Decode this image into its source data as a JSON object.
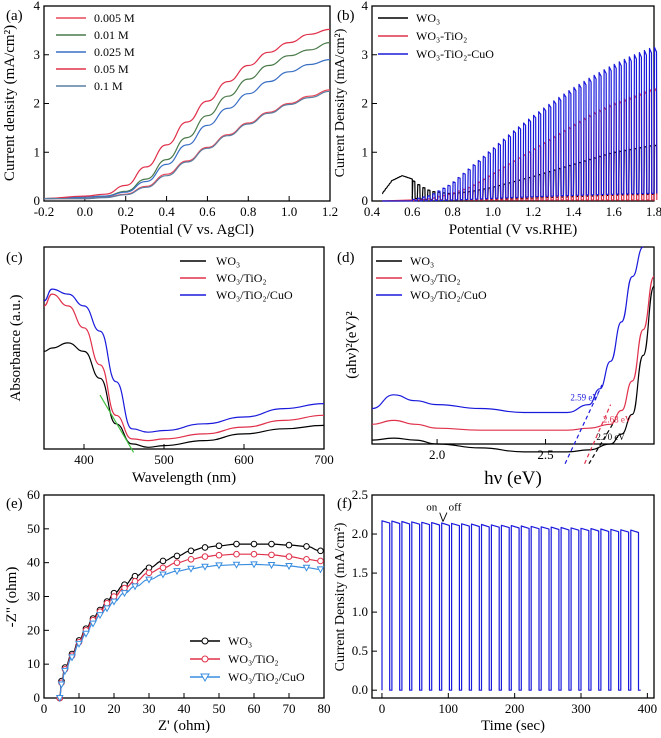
{
  "chart_data": [
    {
      "id": "a",
      "panel_label": "(a)",
      "type": "line",
      "xlabel": "Potential (V vs. AgCl)",
      "ylabel": "Current density (mA/cm²)",
      "xlim": [
        -0.2,
        1.2
      ],
      "ylim": [
        0,
        4
      ],
      "xticks": [
        -0.2,
        0.0,
        0.2,
        0.4,
        0.6,
        0.8,
        1.0,
        1.2
      ],
      "xtick_labels": [
        "-0.2",
        "0.0",
        "0.2",
        "0.4",
        "0.6",
        "0.8",
        "1.0",
        "1.2"
      ],
      "yticks": [
        0,
        1,
        2,
        3,
        4
      ],
      "ytick_labels": [
        "0",
        "1",
        "2",
        "3",
        "4"
      ],
      "legend_position": "top-left",
      "series": [
        {
          "name": "0.005 M",
          "color": "#e8485a",
          "x": [
            -0.2,
            0.0,
            0.1,
            0.2,
            0.3,
            0.4,
            0.5,
            0.6,
            0.7,
            0.8,
            0.9,
            1.0,
            1.1,
            1.2
          ],
          "values": [
            0.05,
            0.05,
            0.08,
            0.14,
            0.3,
            0.55,
            0.82,
            1.1,
            1.36,
            1.6,
            1.82,
            2.0,
            2.15,
            2.28
          ]
        },
        {
          "name": "0.01 M",
          "color": "#4a7a4a",
          "x": [
            -0.2,
            0.0,
            0.1,
            0.2,
            0.3,
            0.4,
            0.5,
            0.6,
            0.7,
            0.8,
            0.9,
            1.0,
            1.1,
            1.2
          ],
          "values": [
            0.05,
            0.08,
            0.1,
            0.2,
            0.45,
            0.85,
            1.3,
            1.75,
            2.15,
            2.5,
            2.78,
            2.98,
            3.1,
            3.25
          ]
        },
        {
          "name": "0.025 M",
          "color": "#3a6fc4",
          "x": [
            -0.2,
            0.0,
            0.1,
            0.2,
            0.3,
            0.4,
            0.5,
            0.6,
            0.7,
            0.8,
            0.9,
            1.0,
            1.1,
            1.2
          ],
          "values": [
            0.05,
            0.08,
            0.1,
            0.18,
            0.4,
            0.75,
            1.15,
            1.55,
            1.9,
            2.2,
            2.45,
            2.65,
            2.8,
            2.9
          ]
        },
        {
          "name": "0.05 M",
          "color": "#e0304a",
          "x": [
            -0.2,
            0.0,
            0.1,
            0.2,
            0.3,
            0.4,
            0.5,
            0.6,
            0.7,
            0.8,
            0.9,
            1.0,
            1.1,
            1.2
          ],
          "values": [
            0.05,
            0.1,
            0.14,
            0.32,
            0.7,
            1.15,
            1.62,
            2.05,
            2.45,
            2.78,
            3.05,
            3.25,
            3.42,
            3.52
          ]
        },
        {
          "name": "0.1 M",
          "color": "#5a7fa0",
          "x": [
            -0.2,
            0.0,
            0.1,
            0.2,
            0.3,
            0.4,
            0.5,
            0.6,
            0.7,
            0.8,
            0.9,
            1.0,
            1.1,
            1.2
          ],
          "values": [
            0.05,
            0.05,
            0.07,
            0.13,
            0.28,
            0.52,
            0.8,
            1.08,
            1.34,
            1.58,
            1.8,
            1.98,
            2.12,
            2.25
          ]
        }
      ]
    },
    {
      "id": "b",
      "panel_label": "(b)",
      "type": "line",
      "xlabel": "Potential (V vs.RHE)",
      "ylabel": "Current Density (mA/cm²)",
      "xlim": [
        0.4,
        1.8
      ],
      "ylim": [
        0,
        4
      ],
      "xticks": [
        0.4,
        0.6,
        0.8,
        1.0,
        1.2,
        1.4,
        1.6,
        1.8
      ],
      "xtick_labels": [
        "0.4",
        "0.6",
        "0.8",
        "1.0",
        "1.2",
        "1.4",
        "1.6",
        "1.8"
      ],
      "yticks": [
        0,
        1,
        2,
        3,
        4
      ],
      "ytick_labels": [
        "0",
        "1",
        "2",
        "3",
        "4"
      ],
      "legend_position": "top-left",
      "chopped": {
        "period": 0.025,
        "start": 0.6
      },
      "series": [
        {
          "name": "WO₃",
          "color": "#000000",
          "x": [
            0.45,
            0.5,
            0.55,
            0.6,
            0.65,
            0.7,
            0.8,
            0.9,
            1.0,
            1.2,
            1.4,
            1.6,
            1.8
          ],
          "values": [
            0.15,
            0.42,
            0.52,
            0.45,
            0.3,
            0.2,
            0.15,
            0.2,
            0.28,
            0.5,
            0.75,
            1.0,
            1.15
          ]
        },
        {
          "name": "WO₃-TiO₂",
          "color": "#e0304a",
          "x": [
            0.45,
            0.6,
            0.7,
            0.8,
            0.9,
            1.0,
            1.1,
            1.2,
            1.3,
            1.4,
            1.5,
            1.6,
            1.7,
            1.8
          ],
          "values": [
            0.0,
            0.0,
            0.05,
            0.15,
            0.3,
            0.55,
            0.8,
            1.05,
            1.3,
            1.55,
            1.8,
            2.0,
            2.15,
            2.32
          ]
        },
        {
          "name": "WO₃-TiO₂-CuO",
          "color": "#1a1adc",
          "x": [
            0.45,
            0.6,
            0.7,
            0.8,
            0.9,
            1.0,
            1.1,
            1.2,
            1.3,
            1.4,
            1.5,
            1.6,
            1.7,
            1.8
          ],
          "values": [
            0.0,
            0.02,
            0.12,
            0.35,
            0.7,
            1.05,
            1.4,
            1.72,
            2.02,
            2.3,
            2.55,
            2.78,
            2.98,
            3.15
          ]
        }
      ]
    },
    {
      "id": "c",
      "panel_label": "(c)",
      "type": "line",
      "xlabel": "Wavelength (nm)",
      "ylabel": "Absorbance (a.u.)",
      "xlim": [
        350,
        700
      ],
      "ylim": [
        0,
        1.2
      ],
      "xticks": [
        400,
        500,
        600,
        700
      ],
      "xtick_labels": [
        "400",
        "500",
        "600",
        "700"
      ],
      "legend_position": "top-right",
      "series": [
        {
          "name": "WO₃",
          "color": "#000000",
          "x": [
            350,
            360,
            380,
            400,
            420,
            440,
            460,
            480,
            500,
            550,
            600,
            650,
            700
          ],
          "values": [
            0.58,
            0.6,
            0.63,
            0.58,
            0.42,
            0.15,
            0.03,
            0.01,
            0.02,
            0.05,
            0.09,
            0.12,
            0.14
          ]
        },
        {
          "name": "WO₃/TiO₂",
          "color": "#e0304a",
          "x": [
            350,
            360,
            380,
            400,
            420,
            440,
            460,
            480,
            500,
            550,
            600,
            650,
            700
          ],
          "values": [
            0.85,
            0.92,
            0.85,
            0.72,
            0.5,
            0.2,
            0.06,
            0.05,
            0.06,
            0.09,
            0.13,
            0.17,
            0.2
          ]
        },
        {
          "name": "WO₃/TiO₂/CuO",
          "color": "#1a1adc",
          "x": [
            350,
            360,
            380,
            400,
            420,
            440,
            460,
            480,
            500,
            550,
            600,
            650,
            700
          ],
          "values": [
            0.88,
            0.95,
            0.92,
            0.85,
            0.7,
            0.4,
            0.12,
            0.1,
            0.11,
            0.15,
            0.19,
            0.24,
            0.27
          ]
        },
        {
          "name": "tangent",
          "color": "#40c040",
          "x": [
            420,
            462
          ],
          "values": [
            0.32,
            -0.02
          ],
          "legend": false
        }
      ]
    },
    {
      "id": "d",
      "panel_label": "(d)",
      "type": "line",
      "xlabel": "hν (eV)",
      "ylabel": "(ahν)²(eV)²",
      "xlim": [
        1.7,
        3.0
      ],
      "ylim": [
        0,
        1.0
      ],
      "xticks": [
        2.0,
        2.5
      ],
      "xtick_labels": [
        "2.0",
        "2.5"
      ],
      "legend_position": "top-left",
      "annotations": [
        {
          "text": "2.59 eV",
          "x": 2.68,
          "y": 0.22,
          "color": "#1a1adc"
        },
        {
          "text": "2.68 eV",
          "x": 2.83,
          "y": 0.11,
          "color": "#e0304a"
        },
        {
          "text": "2.70 eV",
          "x": 2.8,
          "y": 0.02,
          "color": "#000000"
        }
      ],
      "series": [
        {
          "name": "WO₃",
          "color": "#000000",
          "x": [
            1.7,
            1.8,
            1.9,
            2.0,
            2.2,
            2.4,
            2.6,
            2.7,
            2.8,
            2.85,
            2.9,
            2.95,
            3.0
          ],
          "values": [
            0.02,
            0.03,
            0.02,
            0.0,
            -0.02,
            -0.04,
            -0.04,
            -0.03,
            0.0,
            0.05,
            0.15,
            0.45,
            0.8
          ]
        },
        {
          "name": "WO₃/TiO₂",
          "color": "#e0304a",
          "x": [
            1.7,
            1.8,
            1.9,
            2.0,
            2.2,
            2.4,
            2.6,
            2.7,
            2.8,
            2.85,
            2.9,
            2.95,
            3.0
          ],
          "values": [
            0.1,
            0.12,
            0.1,
            0.08,
            0.07,
            0.07,
            0.07,
            0.08,
            0.1,
            0.17,
            0.32,
            0.58,
            0.85
          ]
        },
        {
          "name": "WO₃/TiO₂/CuO",
          "color": "#1a1adc",
          "x": [
            1.7,
            1.8,
            1.9,
            2.0,
            2.2,
            2.4,
            2.6,
            2.7,
            2.75,
            2.8,
            2.85,
            2.9,
            2.95
          ],
          "values": [
            0.18,
            0.25,
            0.22,
            0.2,
            0.18,
            0.16,
            0.16,
            0.2,
            0.28,
            0.42,
            0.62,
            0.85,
            1.0
          ]
        }
      ]
    },
    {
      "id": "e",
      "panel_label": "(e)",
      "type": "scatter",
      "xlabel": "Z' (ohm)",
      "ylabel": "-Z\" (ohm)",
      "xlim": [
        0,
        80
      ],
      "ylim": [
        0,
        60
      ],
      "xticks": [
        0,
        10,
        20,
        30,
        40,
        50,
        60,
        70,
        80
      ],
      "xtick_labels": [
        "0",
        "10",
        "20",
        "30",
        "40",
        "50",
        "60",
        "70",
        "80"
      ],
      "yticks": [
        0,
        10,
        20,
        30,
        40,
        50,
        60
      ],
      "ytick_labels": [
        "0",
        "10",
        "20",
        "30",
        "40",
        "50",
        "60"
      ],
      "legend_position": "bottom-right",
      "series": [
        {
          "name": "WO₃",
          "color": "#000000",
          "marker": "circle",
          "x": [
            4.5,
            5,
            6,
            8,
            10,
            12,
            14,
            16,
            18,
            20,
            23,
            26,
            30,
            34,
            38,
            42,
            46,
            50,
            55,
            60,
            65,
            70,
            75,
            79
          ],
          "values": [
            0,
            5,
            9,
            13,
            17,
            20.5,
            23.5,
            26,
            28.5,
            31,
            33.5,
            36,
            38.5,
            40.5,
            42,
            43.5,
            44.5,
            45,
            45.5,
            45.5,
            45.5,
            45.2,
            44.8,
            43.5
          ]
        },
        {
          "name": "WO₃/TiO₂",
          "color": "#e0304a",
          "marker": "circle",
          "x": [
            4.5,
            5,
            6,
            8,
            10,
            12,
            14,
            16,
            18,
            20,
            23,
            26,
            30,
            34,
            38,
            42,
            46,
            50,
            55,
            60,
            65,
            70,
            75,
            79
          ],
          "values": [
            0,
            4.5,
            8.5,
            12.5,
            16.5,
            20,
            23,
            25.5,
            28,
            30,
            32.5,
            34.5,
            37,
            38.5,
            40,
            41,
            41.8,
            42.2,
            42.5,
            42.5,
            42.3,
            41.8,
            41.0,
            40.5
          ]
        },
        {
          "name": "WO₃/TiO₂/CuO",
          "color": "#3a8ee0",
          "marker": "triangle-down",
          "x": [
            4.5,
            5,
            6,
            8,
            10,
            12,
            14,
            16,
            18,
            20,
            23,
            26,
            30,
            34,
            38,
            42,
            46,
            50,
            55,
            60,
            65,
            70,
            75,
            79
          ],
          "values": [
            0,
            4,
            8,
            12,
            16,
            19,
            22,
            24.5,
            26.5,
            28.5,
            31,
            33,
            35,
            36.5,
            37.5,
            38.2,
            38.8,
            39.2,
            39.4,
            39.5,
            39.3,
            39.0,
            38.5,
            38.0
          ]
        }
      ]
    },
    {
      "id": "f",
      "panel_label": "(f)",
      "type": "line",
      "xlabel": "Time (sec)",
      "ylabel": "Current Density (mA/cm²)",
      "xlim": [
        -15,
        410
      ],
      "ylim": [
        -0.1,
        2.5
      ],
      "xticks": [
        0,
        100,
        200,
        300,
        400
      ],
      "xtick_labels": [
        "0",
        "100",
        "200",
        "300",
        "400"
      ],
      "yticks": [
        0.0,
        0.5,
        1.0,
        1.5,
        2.0,
        2.5
      ],
      "ytick_labels": [
        "0.0",
        "0.5",
        "1.0",
        "1.5",
        "2.0",
        "2.5"
      ],
      "cycles": 26,
      "cycle_start": 0,
      "cycle_period": 15,
      "on_fraction": 0.78,
      "on_current_start": 2.17,
      "on_current_end": 2.05,
      "off_current": 0.0,
      "annotations": [
        {
          "text": "on",
          "x": 75,
          "y": 2.3
        },
        {
          "text": "off",
          "x": 110,
          "y": 2.3
        }
      ],
      "series": [
        {
          "name": "chopped photocurrent",
          "color": "#1a1adc"
        }
      ]
    }
  ]
}
